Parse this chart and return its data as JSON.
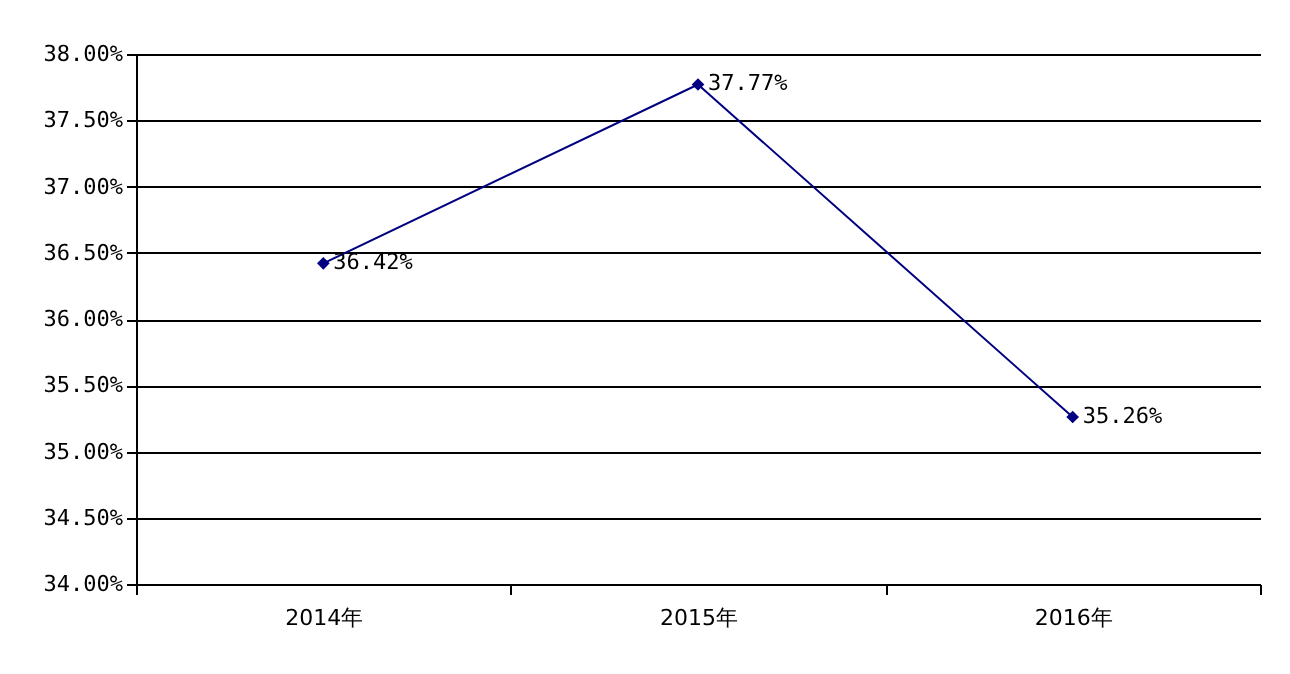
{
  "chart_data": {
    "type": "line",
    "categories": [
      "2014年",
      "2015年",
      "2016年"
    ],
    "series": [
      {
        "color": "#000080",
        "values": [
          36.42,
          37.77,
          35.26
        ],
        "value_labels": [
          "36.42%",
          "37.77%",
          "35.26%"
        ]
      }
    ],
    "ylim": [
      34,
      38
    ],
    "yticks": [
      {
        "value": 34,
        "label": "34.00%"
      },
      {
        "value": 34.5,
        "label": "34.50%"
      },
      {
        "value": 35,
        "label": "35.00%"
      },
      {
        "value": 35.5,
        "label": "35.50%"
      },
      {
        "value": 36,
        "label": "36.00%"
      },
      {
        "value": 36.5,
        "label": "36.50%"
      },
      {
        "value": 37,
        "label": "37.00%"
      },
      {
        "value": 37.5,
        "label": "37.50%"
      },
      {
        "value": 38,
        "label": "38.00%"
      }
    ],
    "grid": "y",
    "marker": "diamond",
    "line_style": "solid",
    "legend": false
  }
}
